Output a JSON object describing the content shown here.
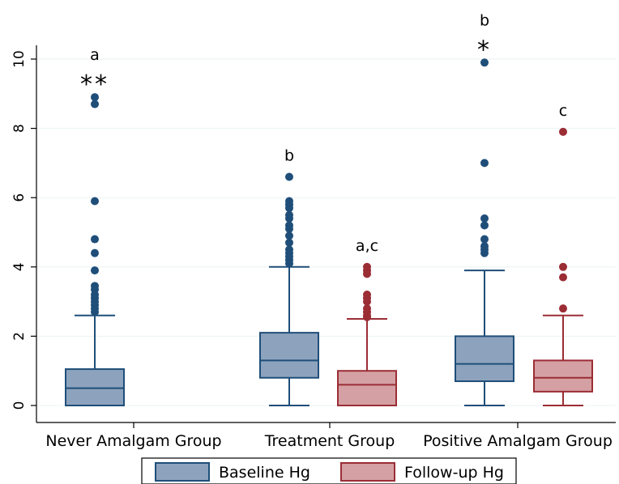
{
  "chart_data": {
    "type": "box",
    "title": "",
    "xlabel": "",
    "ylabel": "",
    "ylim": [
      0,
      10
    ],
    "yticks": [
      0,
      2,
      4,
      6,
      8,
      10
    ],
    "grid": true,
    "legend_position": "bottom",
    "categories": [
      "Never Amalgam Group",
      "Treatment Group",
      "Positive Amalgam Group"
    ],
    "series": [
      {
        "name": "Baseline Hg",
        "color": "#8DA3BD",
        "edge_color": "#1F4E79",
        "boxes": [
          {
            "category": "Never Amalgam Group",
            "min": 0,
            "q1": 0,
            "median": 0.5,
            "q3": 1.05,
            "max": 2.6,
            "outliers": [
              2.7,
              2.8,
              2.9,
              3.0,
              3.1,
              3.2,
              3.35,
              3.45,
              3.9,
              4.4,
              4.8,
              5.9,
              8.7,
              8.9
            ],
            "annotation": "a",
            "significance": "**"
          },
          {
            "category": "Treatment Group",
            "min": 0,
            "q1": 0.8,
            "median": 1.3,
            "q3": 2.1,
            "max": 4.0,
            "outliers": [
              4.1,
              4.2,
              4.3,
              4.4,
              4.5,
              4.7,
              4.9,
              5.1,
              5.2,
              5.4,
              5.5,
              5.7,
              5.8,
              5.9,
              6.6
            ],
            "annotation": "b",
            "significance": ""
          },
          {
            "category": "Positive Amalgam Group",
            "min": 0,
            "q1": 0.7,
            "median": 1.2,
            "q3": 2.0,
            "max": 3.9,
            "outliers": [
              4.4,
              4.5,
              4.6,
              4.8,
              5.2,
              5.4,
              7.0,
              9.9
            ],
            "annotation": "b",
            "significance": "*"
          }
        ]
      },
      {
        "name": "Follow-up Hg",
        "color": "#D4A0A3",
        "edge_color": "#9B2D35",
        "boxes": [
          {
            "category": "Treatment Group",
            "min": 0,
            "q1": 0,
            "median": 0.6,
            "q3": 1.0,
            "max": 2.5,
            "outliers": [
              2.55,
              2.6,
              2.7,
              2.8,
              3.0,
              3.1,
              3.2,
              3.8,
              3.9,
              4.0
            ],
            "annotation": "a,c",
            "significance": ""
          },
          {
            "category": "Positive Amalgam Group",
            "min": 0,
            "q1": 0.4,
            "median": 0.8,
            "q3": 1.3,
            "max": 2.6,
            "outliers": [
              2.8,
              3.7,
              4.0,
              7.9
            ],
            "annotation": "c",
            "significance": ""
          }
        ]
      }
    ]
  }
}
